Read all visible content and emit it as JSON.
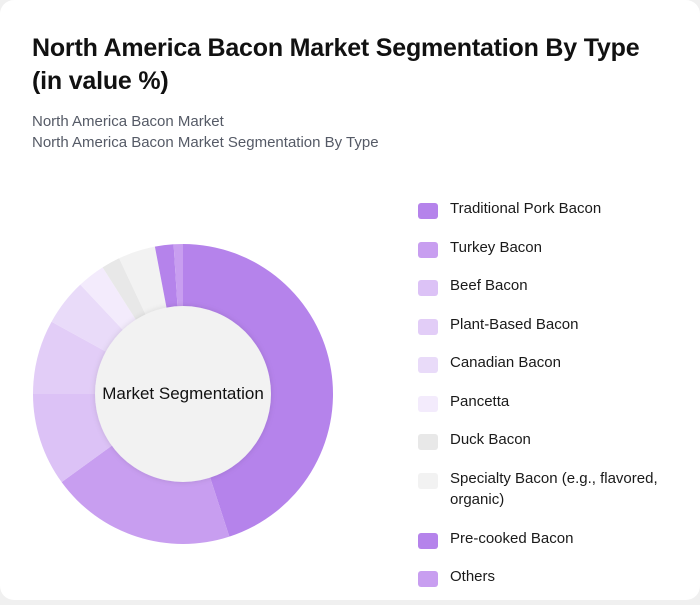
{
  "header": {
    "title": "North America Bacon Market Segmentation By Type (in value %)",
    "subtitle_1": "North America Bacon Market",
    "subtitle_2": "North America Bacon Market Segmentation By Type"
  },
  "center_label": "Market Segmentation",
  "legend": [
    {
      "label": "Traditional Pork Bacon",
      "color": "#b583eb"
    },
    {
      "label": "Turkey Bacon",
      "color": "#c89ef0"
    },
    {
      "label": "Beef Bacon",
      "color": "#dcc2f6"
    },
    {
      "label": "Plant-Based Bacon",
      "color": "#e2cdf7"
    },
    {
      "label": "Canadian Bacon",
      "color": "#e9dbf9"
    },
    {
      "label": "Pancetta",
      "color": "#f3ebfc"
    },
    {
      "label": "Duck Bacon",
      "color": "#e8e8e8"
    },
    {
      "label": "Specialty Bacon (e.g., flavored, organic)",
      "color": "#f2f2f2"
    },
    {
      "label": "Pre-cooked Bacon",
      "color": "#b583eb"
    },
    {
      "label": "Others",
      "color": "#c89ef0"
    }
  ],
  "chart_data": {
    "type": "pie",
    "donut": true,
    "title": "North America Bacon Market Segmentation By Type (in value %)",
    "subtitle": "North America Bacon Market Segmentation By Type",
    "center_text": "Market Segmentation",
    "categories": [
      "Traditional Pork Bacon",
      "Turkey Bacon",
      "Beef Bacon",
      "Plant-Based Bacon",
      "Canadian Bacon",
      "Pancetta",
      "Duck Bacon",
      "Specialty Bacon (e.g., flavored, organic)",
      "Pre-cooked Bacon",
      "Others"
    ],
    "values": [
      45,
      20,
      10,
      8,
      5,
      3,
      2,
      4,
      2,
      1
    ],
    "colors": [
      "#b583eb",
      "#c89ef0",
      "#dcc2f6",
      "#e2cdf7",
      "#e9dbf9",
      "#f3ebfc",
      "#e8e8e8",
      "#f2f2f2",
      "#b583eb",
      "#c89ef0"
    ],
    "legend_position": "right",
    "start_angle": 0,
    "direction": "clockwise"
  }
}
